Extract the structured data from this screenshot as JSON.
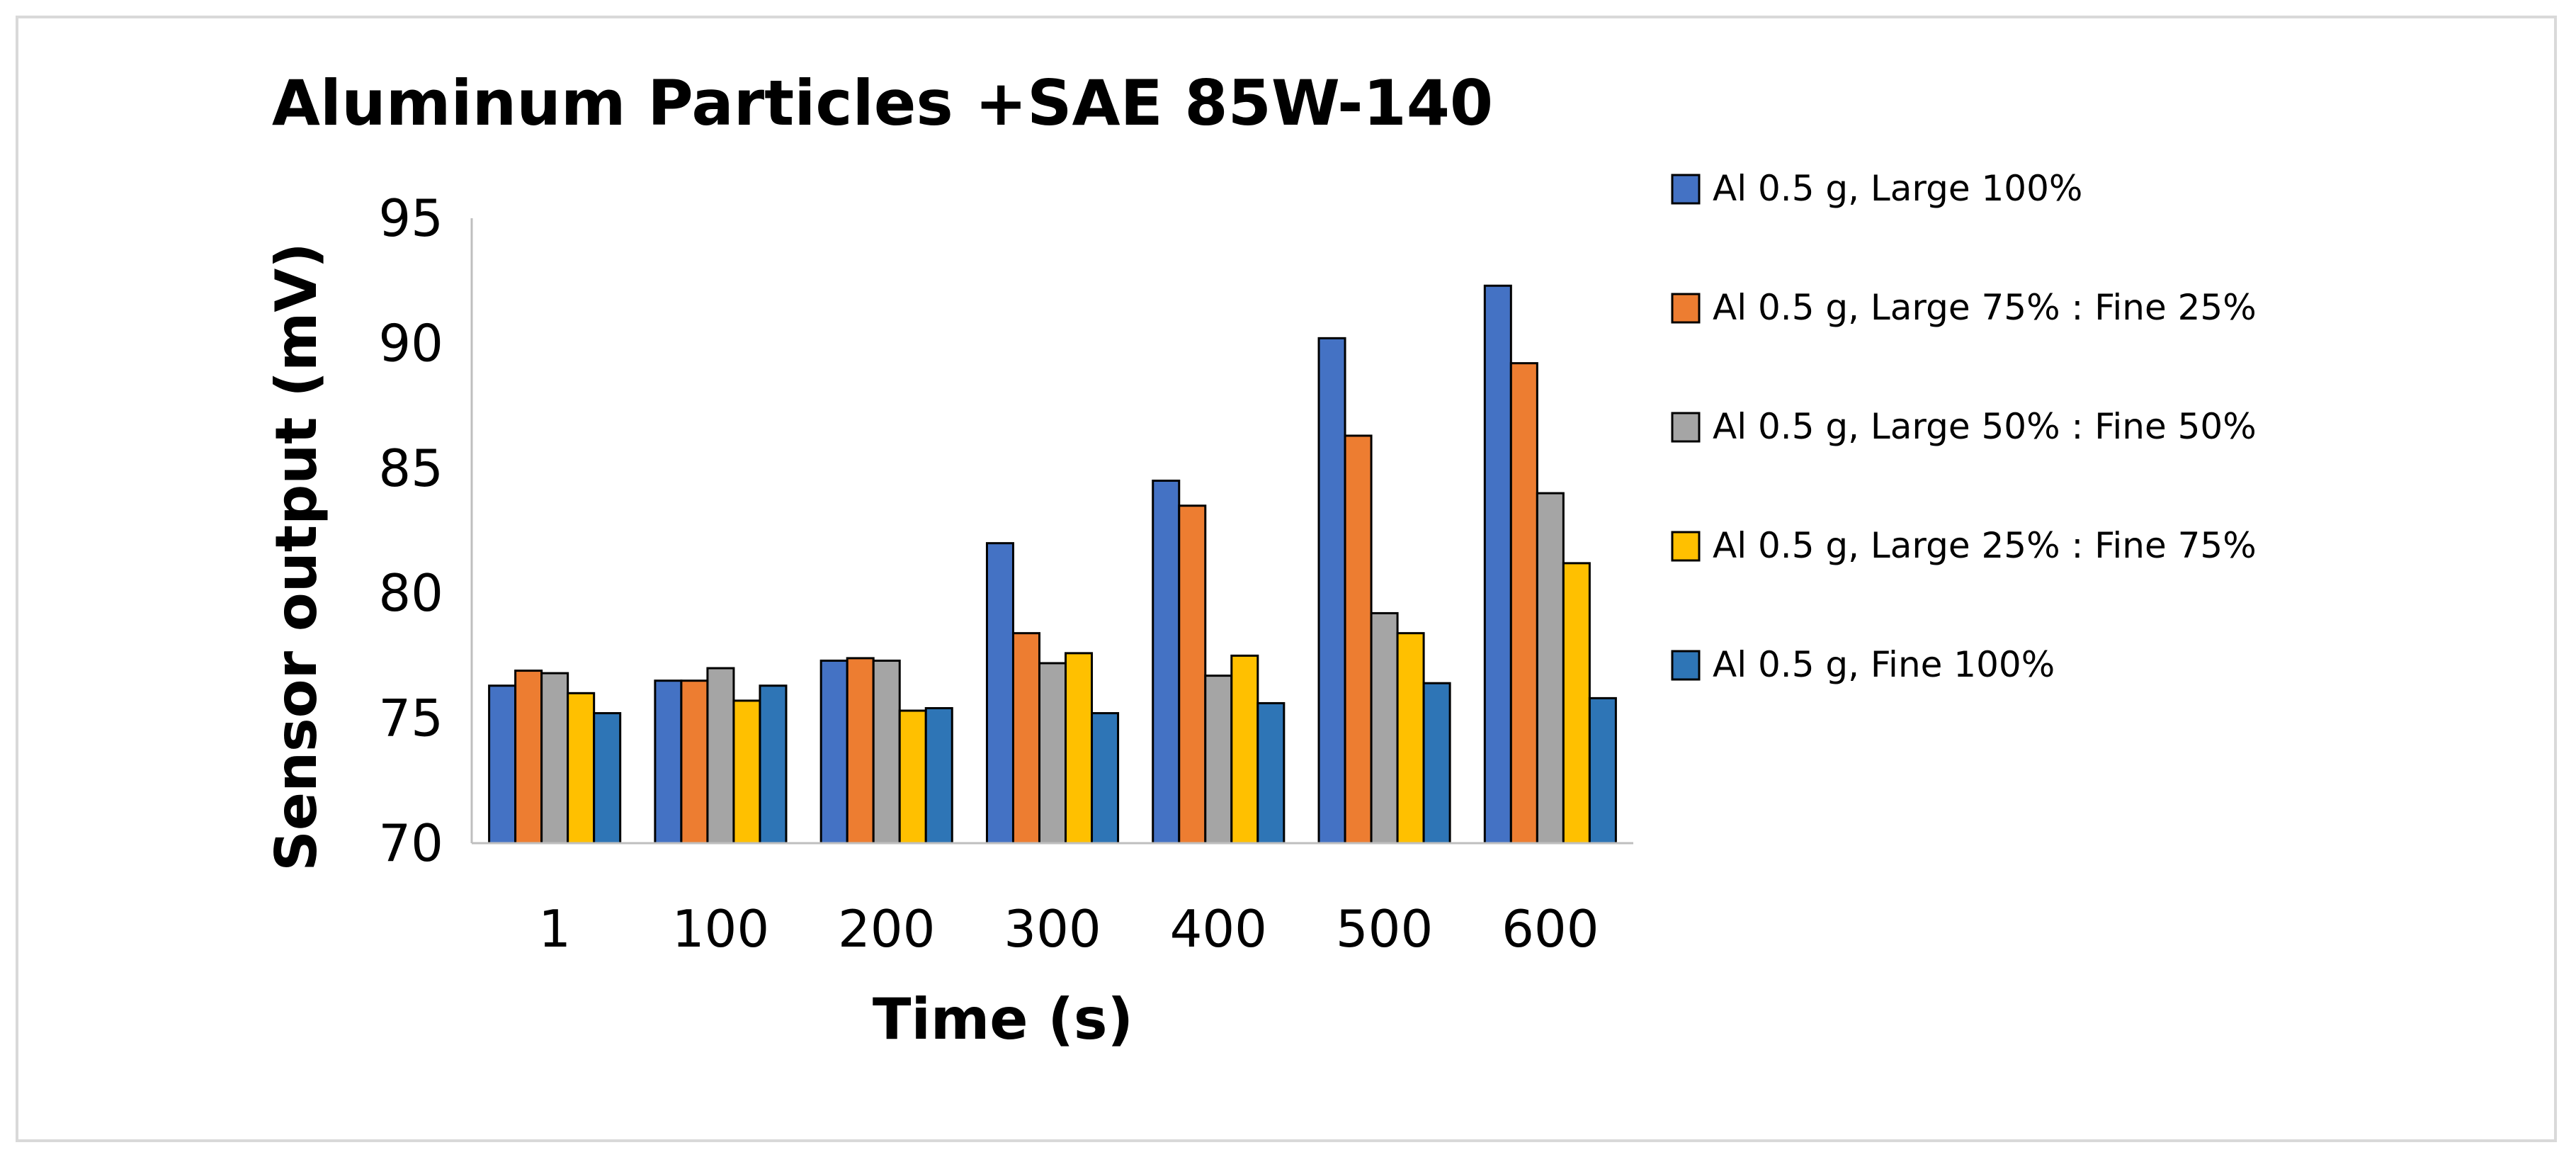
{
  "chart_data": {
    "type": "bar",
    "title": "Aluminum Particles +SAE 85W-140",
    "xlabel": "Time (s)",
    "ylabel": "Sensor output (mV)",
    "ylim": [
      70,
      95
    ],
    "yticks": [
      70,
      75,
      80,
      85,
      90,
      95
    ],
    "categories": [
      "1",
      "100",
      "200",
      "300",
      "400",
      "500",
      "600"
    ],
    "legend_position": "right",
    "grid": false,
    "series": [
      {
        "name": "Al 0.5 g, Large 100%",
        "color": "#4472c4",
        "values": [
          76.3,
          76.5,
          77.3,
          82.0,
          84.5,
          90.2,
          92.3
        ]
      },
      {
        "name": "Al 0.5 g, Large 75% : Fine 25%",
        "color": "#ed7d31",
        "values": [
          76.9,
          76.5,
          77.4,
          78.4,
          83.5,
          86.3,
          89.2
        ]
      },
      {
        "name": "Al 0.5 g, Large 50% : Fine 50%",
        "color": "#a5a5a5",
        "values": [
          76.8,
          77.0,
          77.3,
          77.2,
          76.7,
          79.2,
          84.0
        ]
      },
      {
        "name": "Al 0.5 g, Large 25% : Fine 75%",
        "color": "#ffc000",
        "values": [
          76.0,
          75.7,
          75.3,
          77.6,
          77.5,
          78.4,
          81.2
        ]
      },
      {
        "name": "Al 0.5 g, Fine 100%",
        "color": "#2e75b6",
        "values": [
          75.2,
          76.3,
          75.4,
          75.2,
          75.6,
          76.4,
          75.8
        ]
      }
    ]
  }
}
